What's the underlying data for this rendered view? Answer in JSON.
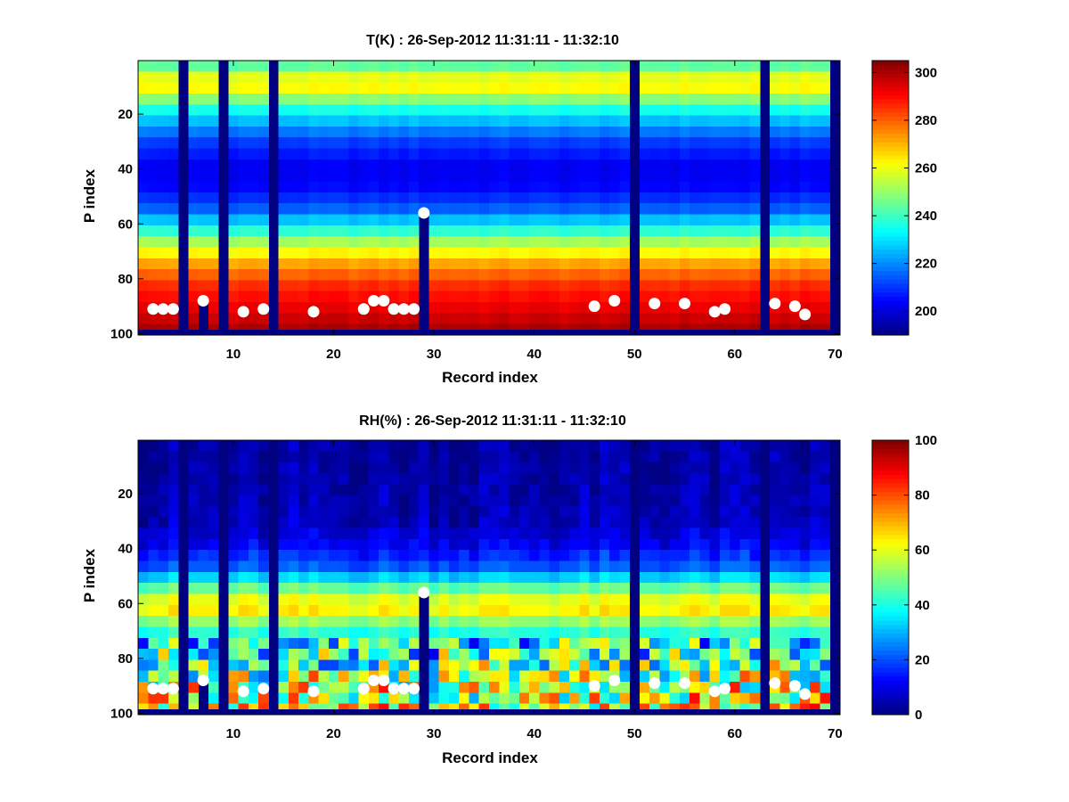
{
  "chart_data": [
    {
      "type": "heatmap",
      "title": "T(K) : 26-Sep-2012 11:31:11 - 11:32:10",
      "xlabel": "Record index",
      "ylabel": "P index",
      "xlim": [
        1,
        70
      ],
      "ylim": [
        1,
        100
      ],
      "y_reversed": true,
      "xticks": [
        "10",
        "20",
        "30",
        "40",
        "50",
        "60",
        "70"
      ],
      "yticks": [
        "20",
        "40",
        "60",
        "80",
        "100"
      ],
      "colorbar": {
        "min": 190,
        "max": 305,
        "ticks": [
          "200",
          "220",
          "240",
          "260",
          "280",
          "300"
        ]
      },
      "profile": [
        {
          "p": 1,
          "v": 238
        },
        {
          "p": 5,
          "v": 250
        },
        {
          "p": 9,
          "v": 268
        },
        {
          "p": 13,
          "v": 255
        },
        {
          "p": 20,
          "v": 232
        },
        {
          "p": 30,
          "v": 212
        },
        {
          "p": 40,
          "v": 202
        },
        {
          "p": 48,
          "v": 205
        },
        {
          "p": 55,
          "v": 215
        },
        {
          "p": 62,
          "v": 235
        },
        {
          "p": 68,
          "v": 255
        },
        {
          "p": 75,
          "v": 272
        },
        {
          "p": 82,
          "v": 285
        },
        {
          "p": 90,
          "v": 292
        },
        {
          "p": 99,
          "v": 300
        }
      ],
      "missing_records": [
        5,
        9,
        14,
        50,
        63,
        70
      ],
      "partial_records": [
        {
          "record": 7,
          "from_p": 88
        },
        {
          "record": 29,
          "from_p": 56
        }
      ],
      "surface_markers": [
        {
          "record": 2,
          "p": 91
        },
        {
          "record": 3,
          "p": 91
        },
        {
          "record": 4,
          "p": 91
        },
        {
          "record": 7,
          "p": 88
        },
        {
          "record": 11,
          "p": 92
        },
        {
          "record": 13,
          "p": 91
        },
        {
          "record": 18,
          "p": 92
        },
        {
          "record": 23,
          "p": 91
        },
        {
          "record": 24,
          "p": 88
        },
        {
          "record": 25,
          "p": 88
        },
        {
          "record": 26,
          "p": 91
        },
        {
          "record": 27,
          "p": 91
        },
        {
          "record": 28,
          "p": 91
        },
        {
          "record": 29,
          "p": 56
        },
        {
          "record": 46,
          "p": 90
        },
        {
          "record": 48,
          "p": 88
        },
        {
          "record": 52,
          "p": 89
        },
        {
          "record": 55,
          "p": 89
        },
        {
          "record": 58,
          "p": 92
        },
        {
          "record": 59,
          "p": 91
        },
        {
          "record": 64,
          "p": 89
        },
        {
          "record": 66,
          "p": 90
        },
        {
          "record": 67,
          "p": 93
        }
      ]
    },
    {
      "type": "heatmap",
      "title": "RH(%) : 26-Sep-2012 11:31:11 - 11:32:10",
      "xlabel": "Record index",
      "ylabel": "P index",
      "xlim": [
        1,
        70
      ],
      "ylim": [
        1,
        100
      ],
      "y_reversed": true,
      "xticks": [
        "10",
        "20",
        "30",
        "40",
        "50",
        "60",
        "70"
      ],
      "yticks": [
        "20",
        "40",
        "60",
        "80",
        "100"
      ],
      "colorbar": {
        "min": 0,
        "max": 100,
        "ticks": [
          "0",
          "20",
          "40",
          "60",
          "80",
          "100"
        ]
      },
      "profile": [
        {
          "p": 1,
          "v": 3
        },
        {
          "p": 30,
          "v": 5
        },
        {
          "p": 40,
          "v": 12
        },
        {
          "p": 48,
          "v": 22
        },
        {
          "p": 53,
          "v": 40
        },
        {
          "p": 58,
          "v": 58
        },
        {
          "p": 62,
          "v": 66
        },
        {
          "p": 66,
          "v": 55
        },
        {
          "p": 70,
          "v": 42
        },
        {
          "p": 76,
          "v": 38
        },
        {
          "p": 82,
          "v": 45
        },
        {
          "p": 90,
          "v": 55
        },
        {
          "p": 99,
          "v": 62
        }
      ],
      "missing_records": [
        5,
        9,
        14,
        50,
        63,
        70
      ],
      "partial_records": [
        {
          "record": 7,
          "from_p": 88
        },
        {
          "record": 29,
          "from_p": 56
        }
      ],
      "surface_markers": [
        {
          "record": 2,
          "p": 91
        },
        {
          "record": 3,
          "p": 91
        },
        {
          "record": 4,
          "p": 91
        },
        {
          "record": 7,
          "p": 88
        },
        {
          "record": 11,
          "p": 92
        },
        {
          "record": 13,
          "p": 91
        },
        {
          "record": 18,
          "p": 92
        },
        {
          "record": 23,
          "p": 91
        },
        {
          "record": 24,
          "p": 88
        },
        {
          "record": 25,
          "p": 88
        },
        {
          "record": 26,
          "p": 91
        },
        {
          "record": 27,
          "p": 91
        },
        {
          "record": 28,
          "p": 91
        },
        {
          "record": 29,
          "p": 56
        },
        {
          "record": 46,
          "p": 90
        },
        {
          "record": 48,
          "p": 88
        },
        {
          "record": 52,
          "p": 89
        },
        {
          "record": 55,
          "p": 89
        },
        {
          "record": 58,
          "p": 92
        },
        {
          "record": 59,
          "p": 91
        },
        {
          "record": 64,
          "p": 89
        },
        {
          "record": 66,
          "p": 90
        },
        {
          "record": 67,
          "p": 93
        }
      ]
    }
  ]
}
